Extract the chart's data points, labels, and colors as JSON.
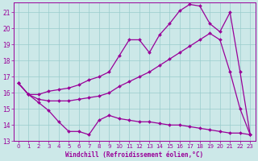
{
  "title": "",
  "xlabel": "Windchill (Refroidissement éolien,°C)",
  "ylabel": "",
  "background_color": "#cce8e8",
  "grid_color": "#99cccc",
  "line_color": "#990099",
  "xlim": [
    -0.5,
    23.5
  ],
  "ylim": [
    13,
    21.6
  ],
  "yticks": [
    13,
    14,
    15,
    16,
    17,
    18,
    19,
    20,
    21
  ],
  "xticks": [
    0,
    1,
    2,
    3,
    4,
    5,
    6,
    7,
    8,
    9,
    10,
    11,
    12,
    13,
    14,
    15,
    16,
    17,
    18,
    19,
    20,
    21,
    22,
    23
  ],
  "line1_x": [
    0,
    1,
    2,
    3,
    4,
    5,
    6,
    7,
    8,
    9,
    10,
    11,
    12,
    13,
    14,
    15,
    16,
    17,
    18,
    19,
    20,
    21,
    22,
    23
  ],
  "line1_y": [
    16.6,
    15.9,
    15.4,
    14.9,
    14.2,
    13.6,
    13.6,
    13.4,
    14.3,
    14.6,
    14.4,
    14.3,
    14.2,
    14.2,
    14.1,
    14.0,
    14.0,
    13.9,
    13.8,
    13.7,
    13.6,
    13.5,
    13.5,
    13.4
  ],
  "line2_x": [
    0,
    1,
    2,
    3,
    4,
    5,
    6,
    7,
    8,
    9,
    10,
    11,
    12,
    13,
    14,
    15,
    16,
    17,
    18,
    19,
    20,
    21,
    22,
    23
  ],
  "line2_y": [
    16.6,
    15.9,
    15.9,
    16.1,
    16.2,
    16.3,
    16.5,
    16.8,
    17.0,
    17.3,
    18.3,
    19.3,
    19.3,
    18.5,
    19.6,
    20.3,
    21.1,
    21.5,
    21.4,
    20.3,
    19.8,
    21.0,
    17.3,
    13.4
  ],
  "line3_x": [
    0,
    1,
    2,
    3,
    4,
    5,
    6,
    7,
    8,
    9,
    10,
    11,
    12,
    13,
    14,
    15,
    16,
    17,
    18,
    19,
    20,
    21,
    22,
    23
  ],
  "line3_y": [
    16.6,
    15.9,
    15.6,
    15.5,
    15.5,
    15.5,
    15.6,
    15.7,
    15.8,
    16.0,
    16.4,
    16.7,
    17.0,
    17.3,
    17.7,
    18.1,
    18.5,
    18.9,
    19.3,
    19.7,
    19.3,
    17.3,
    15.0,
    13.4
  ]
}
